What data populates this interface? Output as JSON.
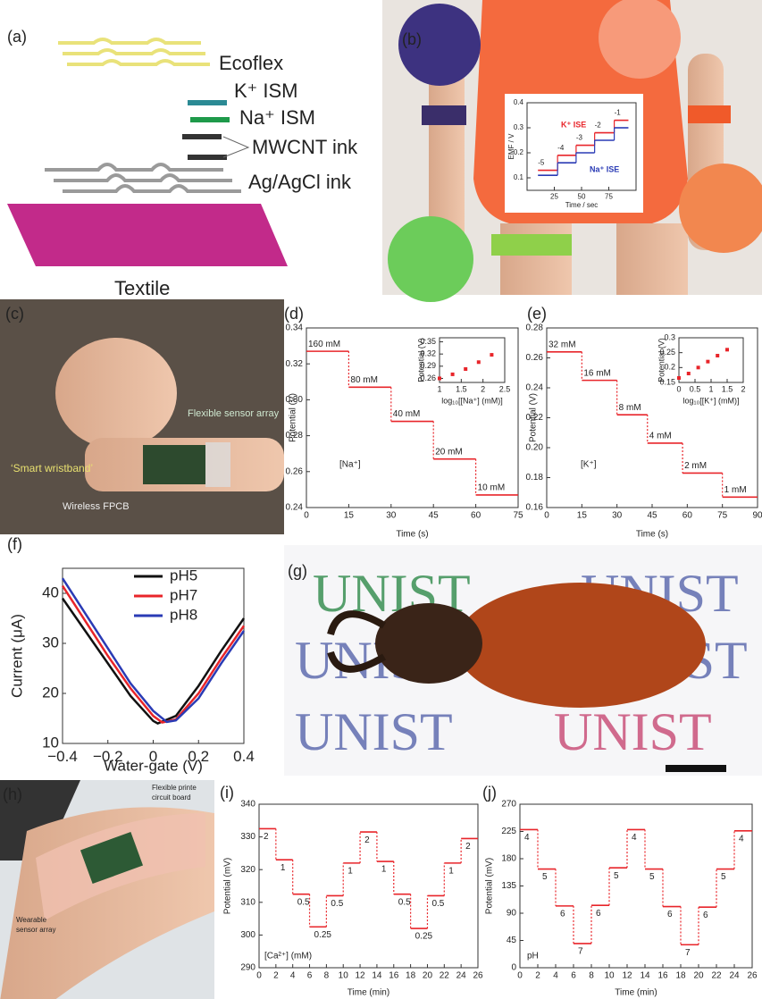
{
  "panels": {
    "a": {
      "label": "(a)",
      "layers": [
        "Ecoflex",
        "K⁺ ISM",
        "Na⁺ ISM",
        "MWCNT ink",
        "Ag/AgCl ink"
      ],
      "base": "Textile"
    },
    "b": {
      "label": "(b)"
    },
    "c": {
      "label": "(c)",
      "callouts": [
        "Flexible sensor array",
        "‘Smart wristband’",
        "Wireless FPCB"
      ]
    },
    "g": {
      "label": "(g)",
      "print": "UNIST"
    },
    "h": {
      "label": "(h)",
      "callouts": [
        "Flexible printe",
        "circuit board",
        "Wearable",
        "sensor array"
      ]
    }
  },
  "chart_data": [
    {
      "type": "step",
      "xlabel": "Time / sec",
      "ylabel": "EMF / V",
      "xlim": [
        0,
        100
      ],
      "xticks": [
        25,
        50,
        75
      ],
      "ylim": [
        0.05,
        0.4
      ],
      "yticks": [
        0.1,
        0.2,
        0.3,
        0.4
      ],
      "series": [
        {
          "name": "K⁺ ISE",
          "color": "#e8252a",
          "edges": [
            10,
            28,
            45,
            62,
            80,
            93
          ],
          "values": [
            0.13,
            0.19,
            0.23,
            0.28,
            0.33
          ]
        },
        {
          "name": "Na⁺ ISE",
          "color": "#2a3bb5",
          "edges": [
            10,
            28,
            45,
            62,
            80,
            93
          ],
          "values": [
            0.11,
            0.16,
            0.2,
            0.25,
            0.3
          ]
        }
      ],
      "annotations": [
        "-5",
        "-4",
        "-3",
        "-2",
        "-1"
      ]
    },
    {
      "type": "step",
      "panel": "(d)",
      "xlabel": "Time (s)",
      "ylabel": "Potential (V)",
      "note": "[Na⁺]",
      "color": "#e8252a",
      "xlim": [
        0,
        75
      ],
      "xticks": [
        0,
        15,
        30,
        45,
        60,
        75
      ],
      "ylim": [
        0.24,
        0.34
      ],
      "yticks": [
        0.24,
        0.26,
        0.28,
        {
          "value": 0.3,
          "label": "0.30"
        },
        0.32,
        0.34
      ],
      "edges": [
        0,
        15,
        30,
        45,
        60,
        75
      ],
      "values": [
        0.327,
        0.307,
        0.288,
        0.267,
        0.247
      ],
      "annotations": [
        "160 mM",
        "80 mM",
        "40 mM",
        "20 mM",
        "10 mM"
      ]
    },
    {
      "type": "scatter",
      "xlabel": "log₁₀[[Na⁺] (mM)]",
      "ylabel": "Potential (V)",
      "color": "#e8252a",
      "xlim": [
        1,
        2.5
      ],
      "xticks": [
        1,
        1.5,
        2,
        2.5
      ],
      "ylim": [
        0.25,
        0.36
      ],
      "yticks": [
        0.26,
        0.29,
        0.32,
        0.35
      ],
      "x": [
        1,
        1.3,
        1.6,
        1.9,
        2.2
      ],
      "values": [
        0.26,
        0.27,
        0.283,
        0.3,
        0.318
      ]
    },
    {
      "type": "step",
      "panel": "(e)",
      "xlabel": "Time (s)",
      "ylabel": "Potential (V)",
      "note": "[K⁺]",
      "color": "#e8252a",
      "xlim": [
        0,
        90
      ],
      "xticks": [
        0,
        15,
        30,
        45,
        60,
        75,
        90
      ],
      "ylim": [
        0.16,
        0.28
      ],
      "yticks": [
        0.16,
        0.18,
        {
          "value": 0.2,
          "label": "0.20"
        },
        0.22,
        0.24,
        0.26,
        0.28
      ],
      "edges": [
        0,
        15,
        30,
        43,
        58,
        75,
        90
      ],
      "values": [
        0.264,
        0.245,
        0.222,
        0.203,
        0.183,
        0.167
      ],
      "annotations": [
        "32 mM",
        "16 mM",
        "8 mM",
        "4 mM",
        "2 mM",
        "1 mM"
      ]
    },
    {
      "type": "scatter",
      "xlabel": "log₁₀[[K⁺] (mM)]",
      "ylabel": "Potential (V)",
      "color": "#e8252a",
      "xlim": [
        0,
        2
      ],
      "xticks": [
        0,
        0.5,
        1,
        1.5,
        2
      ],
      "ylim": [
        0.15,
        0.3
      ],
      "yticks": [
        0.15,
        0.2,
        0.25,
        0.3
      ],
      "x": [
        0,
        0.3,
        0.6,
        0.9,
        1.2,
        1.5
      ],
      "values": [
        0.165,
        0.18,
        0.2,
        0.22,
        0.24,
        0.26
      ]
    },
    {
      "type": "line",
      "panel": "(f)",
      "xlabel": "Water-gate (V)",
      "ylabel": "Current (μA)",
      "legend": "upper right",
      "xlim": [
        -0.4,
        0.4
      ],
      "xticks": [
        {
          "value": -0.4,
          "label": "−0.4"
        },
        {
          "value": -0.2,
          "label": "−0.2"
        },
        0,
        0.2,
        0.4
      ],
      "ylim": [
        10,
        45
      ],
      "yticks": [
        10,
        20,
        30,
        40
      ],
      "series": [
        {
          "name": "pH5",
          "color": "#111111",
          "x": [
            -0.4,
            -0.3,
            -0.2,
            -0.1,
            0,
            0.02,
            0.1,
            0.2,
            0.3,
            0.4
          ],
          "values": [
            39,
            32.5,
            26,
            19.5,
            14.5,
            14,
            15.5,
            21.5,
            28.5,
            35
          ]
        },
        {
          "name": "pH7",
          "color": "#e8252a",
          "x": [
            -0.4,
            -0.3,
            -0.2,
            -0.1,
            0,
            0.04,
            0.1,
            0.2,
            0.3,
            0.4
          ],
          "values": [
            41.5,
            34.5,
            27.5,
            21,
            15.5,
            14.2,
            14.8,
            20,
            27,
            33.5
          ]
        },
        {
          "name": "pH8",
          "color": "#2a3bb5",
          "x": [
            -0.4,
            -0.3,
            -0.2,
            -0.1,
            0,
            0.06,
            0.1,
            0.2,
            0.3,
            0.4
          ],
          "values": [
            43,
            36,
            29,
            22,
            16.5,
            14.3,
            14.6,
            19,
            26,
            32.5
          ]
        }
      ]
    },
    {
      "type": "step",
      "panel": "(i)",
      "xlabel": "Time (min)",
      "ylabel": "Potential (mV)",
      "note": "[Ca²⁺] (mM)",
      "color": "#e8252a",
      "xlim": [
        0,
        26
      ],
      "xticks": [
        0,
        2,
        4,
        6,
        8,
        10,
        12,
        14,
        16,
        18,
        20,
        22,
        24,
        26
      ],
      "ylim": [
        290,
        340
      ],
      "yticks": [
        290,
        300,
        310,
        320,
        330,
        340
      ],
      "edges": [
        0,
        2,
        4,
        6,
        8,
        10,
        12,
        14,
        16,
        18,
        20,
        22,
        24,
        26
      ],
      "values": [
        332.5,
        323,
        312.5,
        302.5,
        312,
        322,
        331.5,
        322.5,
        312.5,
        302,
        312,
        322,
        329.5
      ],
      "annotations": [
        "2",
        "1",
        "0.5",
        "0.25",
        "0.5",
        "1",
        "2",
        "1",
        "0.5",
        "0.25",
        "0.5",
        "1",
        "2"
      ]
    },
    {
      "type": "step",
      "panel": "(j)",
      "xlabel": "Time (min)",
      "ylabel": "Potential (mV)",
      "note": "pH",
      "color": "#e8252a",
      "xlim": [
        0,
        26
      ],
      "xticks": [
        0,
        2,
        4,
        6,
        8,
        10,
        12,
        14,
        16,
        18,
        20,
        22,
        24,
        26
      ],
      "ylim": [
        0,
        270
      ],
      "yticks": [
        0,
        45,
        90,
        135,
        180,
        225,
        270
      ],
      "edges": [
        0,
        2,
        4,
        6,
        8,
        10,
        12,
        14,
        16,
        18,
        20,
        22,
        24,
        26
      ],
      "values": [
        228,
        163,
        102,
        40,
        103,
        165,
        228,
        163,
        101,
        38,
        100,
        163,
        226
      ],
      "annotations": [
        "4",
        "5",
        "6",
        "7",
        "6",
        "5",
        "4",
        "5",
        "6",
        "7",
        "6",
        "5",
        "4"
      ]
    }
  ]
}
